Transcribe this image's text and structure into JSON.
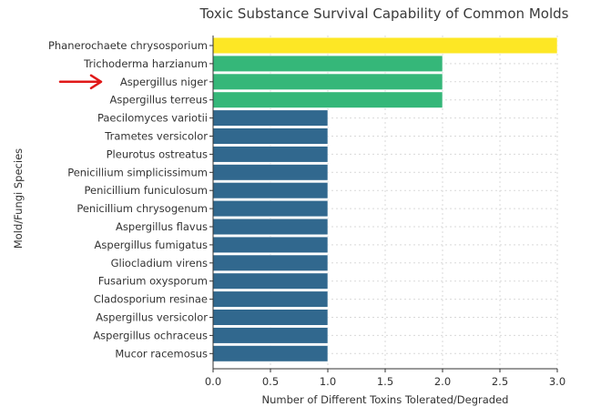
{
  "chart_data": {
    "type": "bar",
    "orientation": "horizontal",
    "title": "Toxic Substance Survival Capability of Common Molds",
    "xlabel": "Number of Different Toxins Tolerated/Degraded",
    "ylabel": "Mold/Fungi Species",
    "xlim": [
      0,
      3.0
    ],
    "xticks": [
      "0.0",
      "0.5",
      "1.0",
      "1.5",
      "2.0",
      "2.5",
      "3.0"
    ],
    "grid": true,
    "categories": [
      "Phanerochaete chrysosporium",
      "Trichoderma harzianum",
      "Aspergillus niger",
      "Aspergillus terreus",
      "Paecilomyces variotii",
      "Trametes versicolor",
      "Pleurotus ostreatus",
      "Penicillium simplicissimum",
      "Penicillium funiculosum",
      "Penicillium chrysogenum",
      "Aspergillus flavus",
      "Aspergillus fumigatus",
      "Gliocladium virens",
      "Fusarium oxysporum",
      "Cladosporium resinae",
      "Aspergillus versicolor",
      "Aspergillus ochraceus",
      "Mucor racemosus"
    ],
    "values": [
      3,
      2,
      2,
      2,
      1,
      1,
      1,
      1,
      1,
      1,
      1,
      1,
      1,
      1,
      1,
      1,
      1,
      1
    ],
    "colors": {
      "3": "#fde725",
      "2": "#35b779",
      "1": "#31688e"
    },
    "annotations": [
      {
        "type": "arrow",
        "target": "Aspergillus niger",
        "color": "#e01818"
      }
    ]
  }
}
